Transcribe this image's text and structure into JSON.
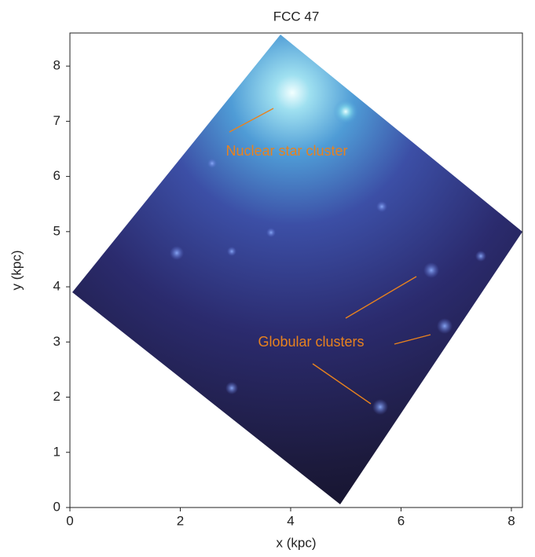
{
  "chart_data": {
    "type": "image",
    "title": "FCC 47",
    "xlabel": "x (kpc)",
    "ylabel": "y (kpc)",
    "xlim": [
      0,
      8.2
    ],
    "ylim": [
      0,
      8.6
    ],
    "xticks": [
      0,
      2,
      4,
      6,
      8
    ],
    "yticks": [
      0,
      1,
      2,
      3,
      4,
      5,
      6,
      7,
      8
    ],
    "annotations": [
      "Nuclear star cluster",
      "Globular clusters"
    ],
    "annotation_color": "#e8821e"
  }
}
